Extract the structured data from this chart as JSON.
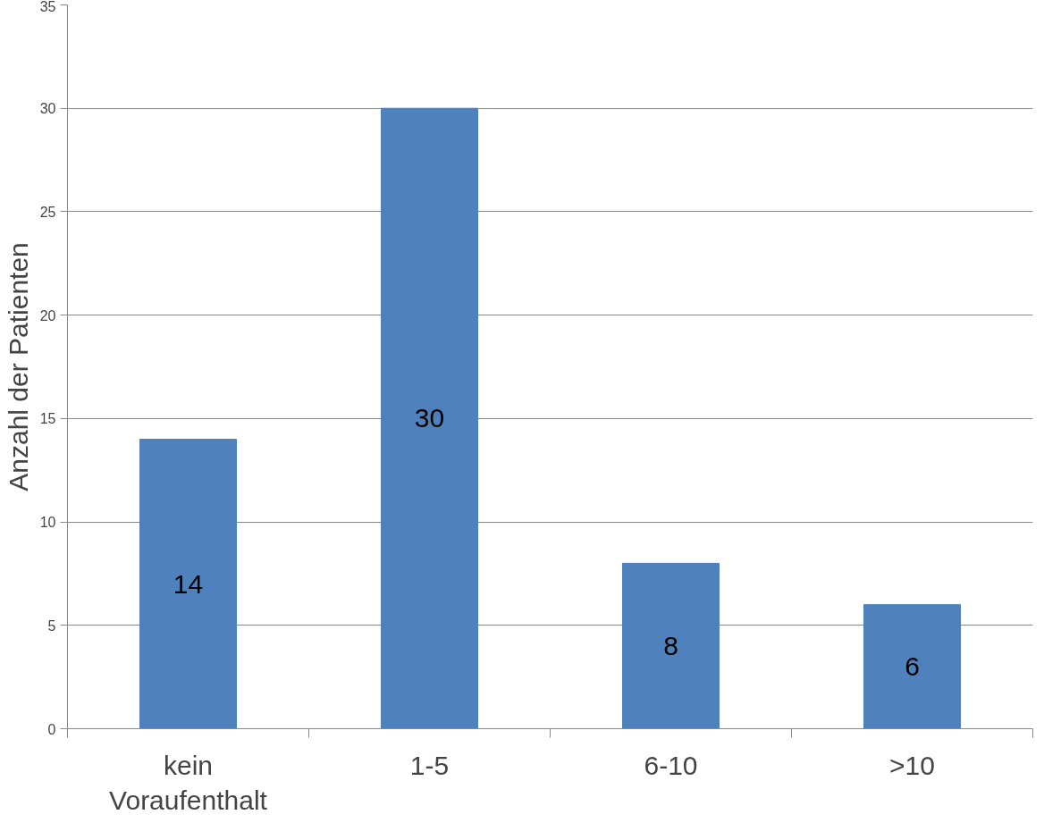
{
  "chart_data": {
    "type": "bar",
    "ylabel": "Anzahl der Patienten",
    "categories": [
      "kein\nVoraufenthalt",
      "1-5",
      "6-10",
      ">10"
    ],
    "values": [
      14,
      30,
      8,
      6
    ],
    "color": "#4f81bd",
    "ylim": [
      0,
      35
    ],
    "yticks": [
      0,
      5,
      10,
      15,
      20,
      25,
      30,
      35
    ],
    "grid": "y",
    "data_labels": true
  }
}
